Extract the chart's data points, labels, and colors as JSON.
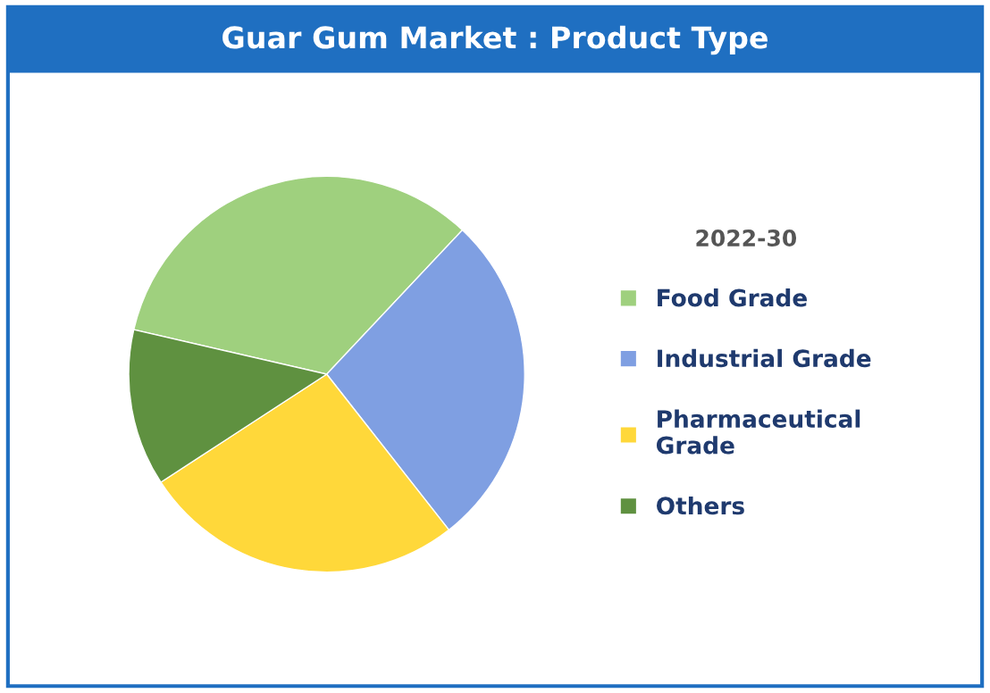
{
  "chart_data": {
    "type": "pie",
    "title": "Guar Gum Market : Product Type",
    "legend_title": "2022-30",
    "categories": [
      "Food Grade",
      "Industrial Grade",
      "Pharmaceutical\nGrade",
      "Others"
    ],
    "values": [
      33.4,
      27.4,
      26.4,
      12.8
    ],
    "colors": [
      "#9fd07e",
      "#7f9fe2",
      "#ffd83a",
      "#5f9140"
    ],
    "legend": "right"
  }
}
